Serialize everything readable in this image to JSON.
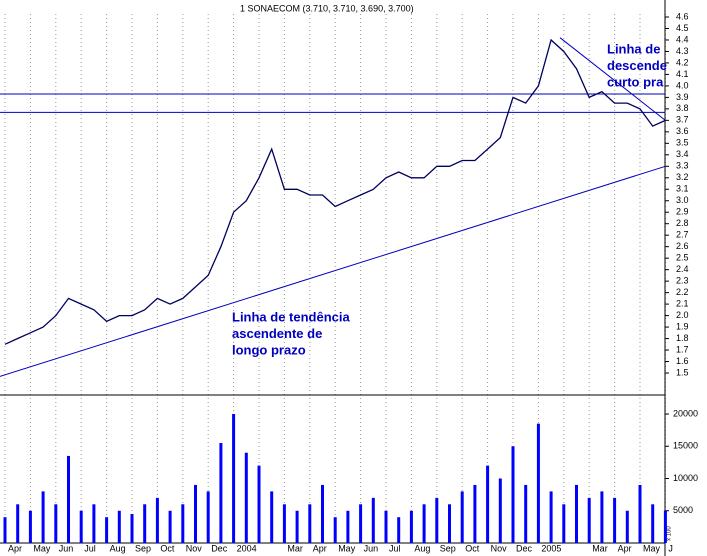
{
  "chart_data": [
    {
      "type": "line",
      "title": "1 SONAECOM (3.710, 3.710, 3.690, 3.700)",
      "xticks": [
        "Apr",
        "May",
        "Jun",
        "Jul",
        "Aug",
        "Sep",
        "Oct",
        "Nov",
        "Dec",
        "2004",
        null,
        "Mar",
        "Apr",
        "May",
        "Jun",
        "Jul",
        "Aug",
        "Sep",
        "Oct",
        "Nov",
        "Dec",
        "2005",
        null,
        "Mar",
        "Apr",
        "May",
        "J"
      ],
      "series": [
        {
          "color": "#000060",
          "values": [
            1.75,
            1.8,
            1.85,
            1.9,
            2.0,
            2.15,
            2.1,
            2.05,
            1.95,
            2.0,
            2.0,
            2.05,
            2.15,
            2.1,
            2.15,
            2.25,
            2.35,
            2.6,
            2.9,
            3.0,
            3.2,
            3.45,
            3.1,
            3.1,
            3.05,
            3.05,
            2.95,
            3.0,
            3.05,
            3.1,
            3.2,
            3.25,
            3.2,
            3.2,
            3.3,
            3.3,
            3.35,
            3.35,
            3.45,
            3.55,
            3.9,
            3.85,
            4.0,
            4.4,
            4.3,
            4.15,
            3.9,
            3.95,
            3.85,
            3.85,
            3.8,
            3.65,
            3.7
          ]
        }
      ],
      "ylim": [
        1.5,
        4.6
      ],
      "yticks": [
        1.5,
        1.6,
        1.7,
        1.8,
        1.9,
        {
          "value": 2.0,
          "label": "2.0"
        },
        2.1,
        2.2,
        2.3,
        2.4,
        2.5,
        2.6,
        2.7,
        2.8,
        2.9,
        {
          "value": 3.0,
          "label": "3.0"
        },
        3.1,
        3.2,
        3.3,
        3.4,
        3.5,
        3.6,
        3.7,
        3.8,
        3.9,
        {
          "value": 4.0,
          "label": "4.0"
        },
        4.1,
        4.2,
        4.3,
        4.4,
        4.5,
        4.6
      ],
      "trend_lines": [
        {
          "color": "#0000c0",
          "from": [
            -0.2,
            1.47
          ],
          "to": [
            26,
            3.3
          ]
        },
        {
          "color": "#0000c0",
          "from": [
            21.85,
            4.42
          ],
          "to": [
            26,
            3.7
          ]
        },
        {
          "color": "#0000c0",
          "from": [
            -0.2,
            3.93
          ],
          "to": [
            26,
            3.93
          ]
        },
        {
          "color": "#0000c0",
          "from": [
            -0.2,
            3.77
          ],
          "to": [
            26,
            3.77
          ]
        }
      ],
      "annotations": [
        {
          "lines": [
            "Linha de tendência",
            "ascendente de",
            "longo prazo"
          ],
          "color": "#0000c0"
        },
        {
          "lines": [
            "Linha de",
            "descende",
            "curto pra"
          ],
          "color": "#0000c0"
        }
      ]
    },
    {
      "type": "bar",
      "color": "#0000ff",
      "unit_label": "x 100",
      "values": [
        4000,
        6000,
        5000,
        8000,
        6000,
        13500,
        5000,
        6000,
        4000,
        5000,
        4500,
        6000,
        7000,
        5000,
        6000,
        9000,
        8000,
        15500,
        20000,
        14000,
        12000,
        8000,
        6000,
        5000,
        6000,
        9000,
        4000,
        5000,
        6000,
        7000,
        5000,
        4000,
        5000,
        6000,
        7000,
        6000,
        8000,
        9000,
        12000,
        10000,
        15000,
        9000,
        18500,
        8000,
        6000,
        9000,
        7000,
        8000,
        7000,
        5000,
        9000,
        6000,
        5000
      ],
      "ylim": [
        0,
        20000
      ],
      "yticks": [
        5000,
        10000,
        15000,
        20000
      ]
    }
  ]
}
